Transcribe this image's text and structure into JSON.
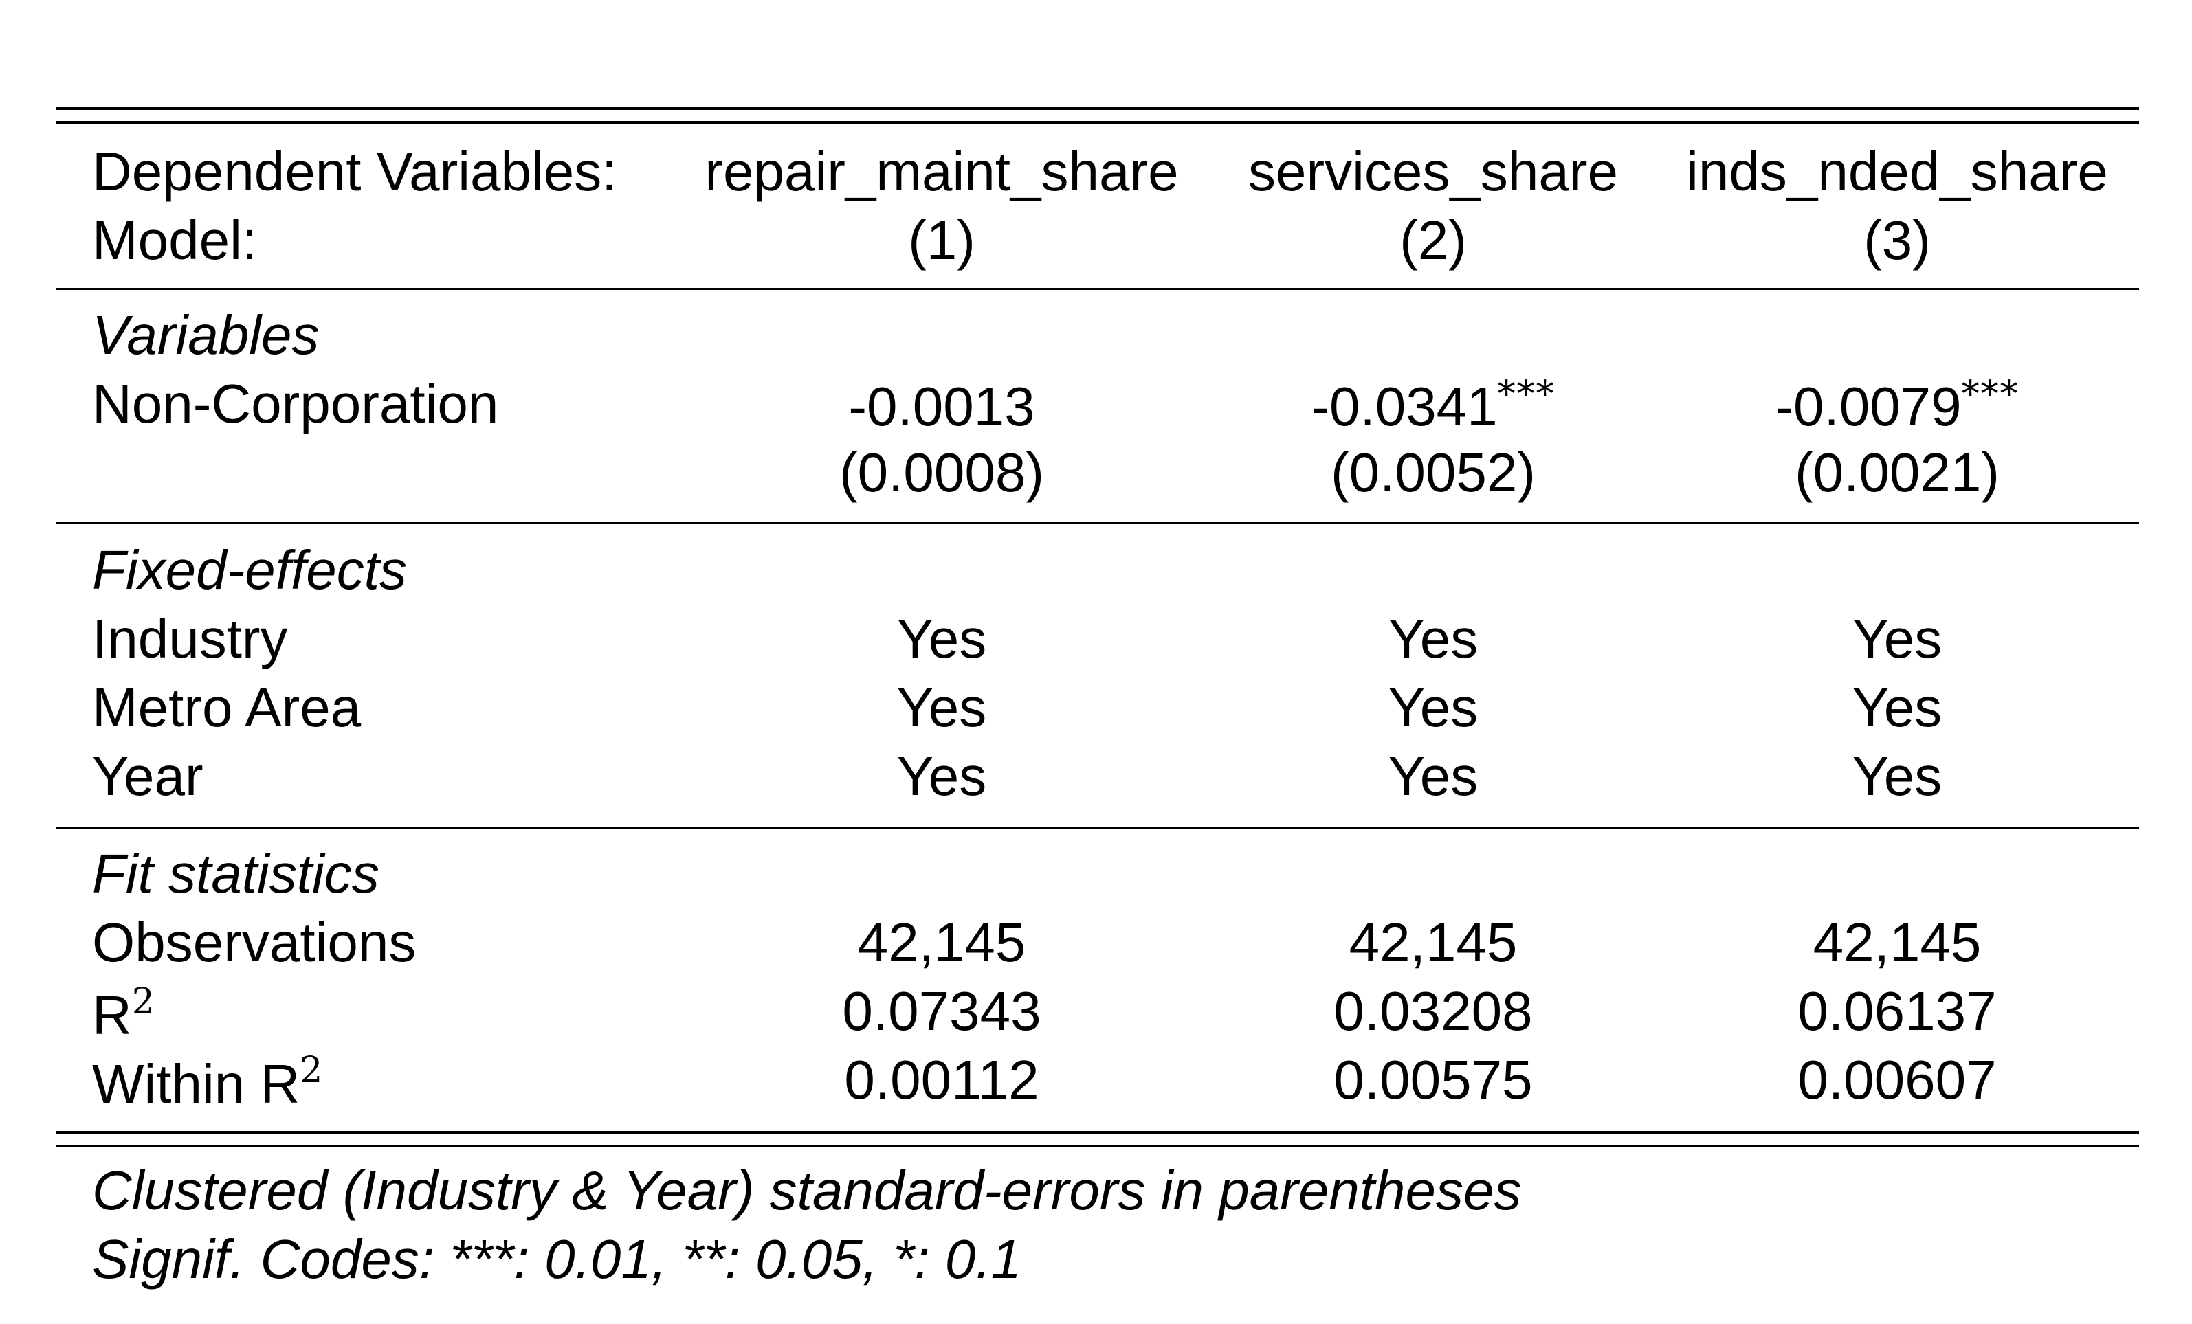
{
  "table": {
    "header": {
      "dep_vars_label": "Dependent Variables:",
      "model_label": "Model:",
      "columns": [
        {
          "dep_var": "repair_maint_share",
          "model": "(1)"
        },
        {
          "dep_var": "services_share",
          "model": "(2)"
        },
        {
          "dep_var": "inds_nded_share",
          "model": "(3)"
        }
      ]
    },
    "variables": {
      "section_label": "Variables",
      "row_label": "Non-Corporation",
      "estimates": [
        "-0.0013",
        "-0.0341",
        "-0.0079"
      ],
      "stars": [
        "",
        "***",
        "***"
      ],
      "std_errors": [
        "(0.0008)",
        "(0.0052)",
        "(0.0021)"
      ]
    },
    "fixed_effects": {
      "section_label": "Fixed-effects",
      "rows": [
        {
          "label": "Industry",
          "values": [
            "Yes",
            "Yes",
            "Yes"
          ]
        },
        {
          "label": "Metro Area",
          "values": [
            "Yes",
            "Yes",
            "Yes"
          ]
        },
        {
          "label": "Year",
          "values": [
            "Yes",
            "Yes",
            "Yes"
          ]
        }
      ]
    },
    "fit_statistics": {
      "section_label": "Fit statistics",
      "observations": {
        "label": "Observations",
        "values": [
          "42,145",
          "42,145",
          "42,145"
        ]
      },
      "r2": {
        "label": "R",
        "sup": "2",
        "values": [
          "0.07343",
          "0.03208",
          "0.06137"
        ]
      },
      "within_r2": {
        "label": "Within R",
        "sup": "2",
        "values": [
          "0.00112",
          "0.00575",
          "0.00607"
        ]
      }
    },
    "footnotes": {
      "line1": "Clustered (Industry & Year) standard-errors in parentheses",
      "line2": "Signif. Codes: ***: 0.01, **: 0.05, *: 0.1"
    }
  }
}
